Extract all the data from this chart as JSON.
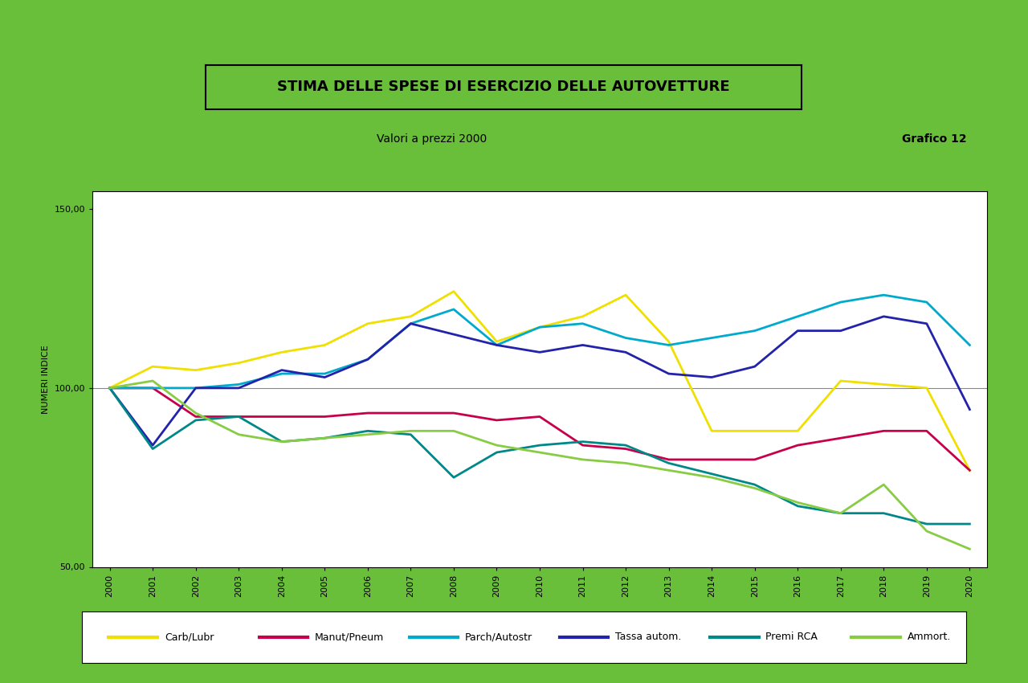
{
  "title": "STIMA DELLE SPESE DI ESERCIZIO DELLE AUTOVETTURE",
  "subtitle": "Valori a prezzi 2000",
  "grafico_label": "Grafico 12",
  "ylabel": "NUMERI INDICE",
  "background_color": "#6abf3a",
  "plot_bg_color": "#ffffff",
  "outer_bg_color": "#6abf3a",
  "ylim": [
    50,
    155
  ],
  "yticks": [
    50.0,
    100.0,
    150.0
  ],
  "ytick_labels": [
    "50,00",
    "100,00",
    "150,00"
  ],
  "years": [
    2000,
    2001,
    2002,
    2003,
    2004,
    2005,
    2006,
    2007,
    2008,
    2009,
    2010,
    2011,
    2012,
    2013,
    2014,
    2015,
    2016,
    2017,
    2018,
    2019,
    2020
  ],
  "series": {
    "Carb/Lubr": {
      "color": "#f0e000",
      "linewidth": 2.0,
      "values": [
        100,
        106,
        105,
        107,
        110,
        112,
        118,
        120,
        127,
        113,
        117,
        120,
        126,
        113,
        88,
        88,
        88,
        102,
        101,
        100,
        77
      ]
    },
    "Manut/Pneum": {
      "color": "#c8004b",
      "linewidth": 2.0,
      "values": [
        100,
        100,
        92,
        92,
        92,
        92,
        93,
        93,
        93,
        91,
        92,
        84,
        83,
        80,
        80,
        80,
        84,
        86,
        88,
        88,
        77
      ]
    },
    "Parch/Autostr": {
      "color": "#00aacc",
      "linewidth": 2.0,
      "values": [
        100,
        100,
        100,
        101,
        104,
        104,
        108,
        118,
        122,
        112,
        117,
        118,
        114,
        112,
        114,
        116,
        120,
        124,
        126,
        124,
        112
      ]
    },
    "Tassa autom.": {
      "color": "#2222aa",
      "linewidth": 2.0,
      "values": [
        100,
        84,
        100,
        100,
        105,
        103,
        108,
        118,
        115,
        112,
        110,
        112,
        110,
        104,
        103,
        106,
        116,
        116,
        120,
        118,
        94
      ]
    },
    "Premi RCA": {
      "color": "#008888",
      "linewidth": 2.0,
      "values": [
        100,
        83,
        91,
        92,
        85,
        86,
        88,
        87,
        75,
        82,
        84,
        85,
        84,
        79,
        76,
        73,
        67,
        65,
        65,
        62,
        62
      ]
    },
    "Ammort.": {
      "color": "#88cc44",
      "linewidth": 2.0,
      "values": [
        100,
        102,
        93,
        87,
        85,
        86,
        87,
        88,
        88,
        84,
        82,
        80,
        79,
        77,
        75,
        72,
        68,
        65,
        73,
        60,
        55
      ]
    }
  },
  "hline_value": 100,
  "hline_color": "#888888",
  "legend_labels": [
    "Carb/Lubr",
    "Manut/Pneum",
    "Parch/Autostr",
    "Tassa autom.",
    "Premi RCA",
    "Ammort."
  ],
  "title_fontsize": 13,
  "subtitle_fontsize": 10,
  "grafico_fontsize": 10,
  "ylabel_fontsize": 8,
  "tick_fontsize": 8,
  "legend_fontsize": 9
}
